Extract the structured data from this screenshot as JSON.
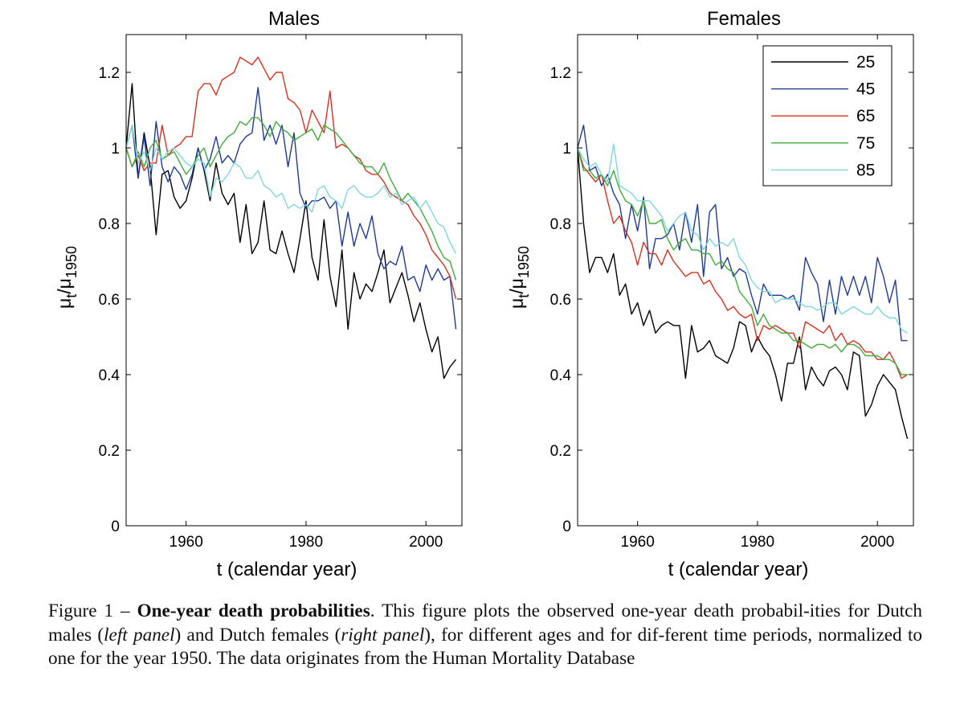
{
  "chart_data": [
    {
      "type": "line",
      "title": "Males",
      "xlabel": "t (calendar year)",
      "ylabel": "μt/μ1950",
      "xlim": [
        1950,
        2006
      ],
      "ylim": [
        0,
        1.3
      ],
      "xticks": [
        1960,
        1980,
        2000
      ],
      "yticks": [
        0,
        0.2,
        0.4,
        0.6,
        0.8,
        1,
        1.2
      ],
      "ytick_labels": [
        "0",
        "0.2",
        "0.4",
        "0.6",
        "0.8",
        "1",
        "1.2"
      ],
      "legend": false,
      "grid": false,
      "series": [
        {
          "name": "25",
          "color": "#000000",
          "x_start": 1950,
          "x_step": 1,
          "values": [
            1.0,
            1.17,
            0.92,
            1.04,
            0.95,
            0.77,
            0.93,
            0.94,
            0.87,
            0.84,
            0.86,
            0.92,
            1.0,
            0.94,
            0.86,
            0.96,
            0.88,
            0.85,
            0.88,
            0.75,
            0.85,
            0.72,
            0.75,
            0.86,
            0.73,
            0.72,
            0.78,
            0.72,
            0.67,
            0.76,
            0.86,
            0.71,
            0.65,
            0.81,
            0.66,
            0.58,
            0.73,
            0.52,
            0.67,
            0.6,
            0.64,
            0.62,
            0.67,
            0.73,
            0.59,
            0.63,
            0.67,
            0.61,
            0.54,
            0.59,
            0.52,
            0.46,
            0.5,
            0.39,
            0.42,
            0.44
          ]
        },
        {
          "name": "45",
          "color": "#1f3a93",
          "x_start": 1950,
          "x_step": 1,
          "values": [
            1.0,
            1.06,
            0.92,
            1.03,
            0.9,
            1.07,
            0.95,
            0.91,
            0.95,
            0.93,
            0.89,
            0.93,
            1.0,
            0.94,
            0.97,
            1.03,
            0.96,
            0.98,
            0.96,
            1.01,
            1.03,
            1.04,
            1.16,
            1.02,
            1.06,
            1.01,
            1.06,
            0.95,
            1.04,
            0.88,
            0.84,
            0.86,
            0.86,
            0.87,
            0.84,
            0.86,
            0.74,
            0.83,
            0.74,
            0.8,
            0.76,
            0.82,
            0.72,
            0.68,
            0.7,
            0.69,
            0.74,
            0.65,
            0.66,
            0.62,
            0.69,
            0.65,
            0.68,
            0.65,
            0.66,
            0.52
          ]
        },
        {
          "name": "65",
          "color": "#d7301f",
          "x_start": 1950,
          "x_step": 1,
          "values": [
            1.0,
            0.95,
            0.98,
            0.94,
            0.96,
            0.96,
            1.06,
            0.98,
            1.0,
            1.01,
            1.03,
            1.03,
            1.15,
            1.17,
            1.17,
            1.14,
            1.18,
            1.19,
            1.2,
            1.24,
            1.23,
            1.22,
            1.24,
            1.21,
            1.18,
            1.2,
            1.2,
            1.13,
            1.12,
            1.1,
            1.04,
            1.1,
            1.07,
            1.04,
            1.15,
            1.0,
            1.01,
            1.0,
            0.98,
            0.97,
            0.94,
            0.93,
            0.93,
            0.91,
            0.88,
            0.87,
            0.86,
            0.85,
            0.82,
            0.8,
            0.77,
            0.73,
            0.71,
            0.69,
            0.66,
            0.6
          ]
        },
        {
          "name": "75",
          "color": "#41ab3c",
          "x_start": 1950,
          "x_step": 1,
          "values": [
            1.0,
            0.95,
            0.99,
            0.95,
            1.0,
            1.02,
            0.97,
            0.98,
            0.99,
            0.96,
            0.93,
            0.95,
            0.98,
            1.0,
            0.95,
            0.98,
            1.01,
            1.03,
            1.04,
            1.07,
            1.06,
            1.08,
            1.08,
            1.06,
            1.03,
            1.07,
            1.05,
            1.04,
            1.02,
            1.03,
            1.04,
            1.05,
            1.02,
            1.06,
            1.05,
            1.04,
            1.02,
            1.0,
            0.98,
            0.96,
            0.95,
            0.95,
            0.93,
            0.96,
            0.92,
            0.89,
            0.86,
            0.88,
            0.86,
            0.84,
            0.81,
            0.78,
            0.74,
            0.71,
            0.7,
            0.65
          ]
        },
        {
          "name": "85",
          "color": "#7fd7dc",
          "x_start": 1950,
          "x_step": 1,
          "values": [
            1.0,
            1.06,
            0.96,
            0.99,
            0.94,
            1.0,
            0.97,
            0.99,
            1.0,
            0.98,
            0.96,
            0.95,
            0.97,
            0.96,
            0.87,
            0.92,
            0.91,
            0.93,
            0.96,
            0.95,
            0.92,
            0.92,
            0.94,
            0.9,
            0.89,
            0.87,
            0.88,
            0.84,
            0.85,
            0.84,
            0.85,
            0.83,
            0.89,
            0.9,
            0.87,
            0.86,
            0.84,
            0.89,
            0.9,
            0.88,
            0.87,
            0.87,
            0.88,
            0.9,
            0.87,
            0.88,
            0.85,
            0.86,
            0.87,
            0.84,
            0.86,
            0.83,
            0.8,
            0.79,
            0.75,
            0.72
          ]
        }
      ]
    },
    {
      "type": "line",
      "title": "Females",
      "xlabel": "t (calendar year)",
      "ylabel": "μt/μ1950",
      "xlim": [
        1950,
        2006
      ],
      "ylim": [
        0,
        1.3
      ],
      "xticks": [
        1960,
        1980,
        2000
      ],
      "yticks": [
        0,
        0.2,
        0.4,
        0.6,
        0.8,
        1,
        1.2
      ],
      "ytick_labels": [
        "0",
        "0.2",
        "0.4",
        "0.6",
        "0.8",
        "1",
        "1.2"
      ],
      "legend": true,
      "legend_position": "top-right",
      "grid": false,
      "series": [
        {
          "name": "25",
          "color": "#000000",
          "x_start": 1950,
          "x_step": 1,
          "values": [
            1.0,
            0.8,
            0.67,
            0.71,
            0.71,
            0.67,
            0.72,
            0.61,
            0.64,
            0.56,
            0.59,
            0.53,
            0.57,
            0.51,
            0.53,
            0.54,
            0.53,
            0.53,
            0.39,
            0.53,
            0.46,
            0.47,
            0.49,
            0.45,
            0.44,
            0.43,
            0.47,
            0.54,
            0.53,
            0.46,
            0.5,
            0.47,
            0.45,
            0.4,
            0.33,
            0.43,
            0.43,
            0.5,
            0.36,
            0.42,
            0.39,
            0.37,
            0.41,
            0.42,
            0.4,
            0.36,
            0.46,
            0.45,
            0.29,
            0.32,
            0.37,
            0.4,
            0.38,
            0.36,
            0.29,
            0.23
          ]
        },
        {
          "name": "45",
          "color": "#1f3a93",
          "x_start": 1950,
          "x_step": 1,
          "values": [
            1.0,
            1.06,
            0.94,
            0.95,
            0.9,
            0.93,
            0.88,
            0.85,
            0.76,
            0.85,
            0.78,
            0.87,
            0.68,
            0.76,
            0.76,
            0.77,
            0.8,
            0.73,
            0.83,
            0.75,
            0.85,
            0.66,
            0.83,
            0.85,
            0.68,
            0.71,
            0.66,
            0.68,
            0.67,
            0.61,
            0.56,
            0.64,
            0.61,
            0.61,
            0.61,
            0.6,
            0.61,
            0.57,
            0.71,
            0.67,
            0.64,
            0.54,
            0.65,
            0.56,
            0.66,
            0.61,
            0.66,
            0.61,
            0.66,
            0.59,
            0.71,
            0.66,
            0.59,
            0.65,
            0.49,
            0.49
          ]
        },
        {
          "name": "65",
          "color": "#d7301f",
          "x_start": 1950,
          "x_step": 1,
          "values": [
            1.0,
            0.95,
            0.93,
            0.91,
            0.93,
            0.86,
            0.8,
            0.82,
            0.78,
            0.75,
            0.69,
            0.75,
            0.72,
            0.72,
            0.69,
            0.73,
            0.7,
            0.68,
            0.66,
            0.67,
            0.67,
            0.64,
            0.65,
            0.62,
            0.6,
            0.57,
            0.58,
            0.56,
            0.55,
            0.56,
            0.49,
            0.53,
            0.52,
            0.53,
            0.52,
            0.51,
            0.51,
            0.47,
            0.54,
            0.53,
            0.52,
            0.51,
            0.53,
            0.49,
            0.51,
            0.48,
            0.49,
            0.48,
            0.46,
            0.46,
            0.44,
            0.44,
            0.46,
            0.43,
            0.39,
            0.4
          ]
        },
        {
          "name": "75",
          "color": "#41ab3c",
          "x_start": 1950,
          "x_step": 1,
          "values": [
            1.0,
            0.94,
            0.94,
            0.92,
            0.93,
            0.9,
            0.94,
            0.89,
            0.86,
            0.85,
            0.82,
            0.86,
            0.8,
            0.8,
            0.81,
            0.76,
            0.73,
            0.75,
            0.76,
            0.73,
            0.73,
            0.72,
            0.72,
            0.69,
            0.7,
            0.68,
            0.67,
            0.62,
            0.6,
            0.58,
            0.53,
            0.56,
            0.53,
            0.52,
            0.51,
            0.51,
            0.49,
            0.49,
            0.48,
            0.47,
            0.48,
            0.48,
            0.47,
            0.48,
            0.46,
            0.48,
            0.48,
            0.47,
            0.45,
            0.45,
            0.45,
            0.44,
            0.44,
            0.43,
            0.4,
            0.4
          ]
        },
        {
          "name": "85",
          "color": "#7fd7dc",
          "x_start": 1950,
          "x_step": 1,
          "values": [
            1.0,
            0.97,
            0.95,
            0.96,
            0.93,
            0.91,
            1.01,
            0.9,
            0.89,
            0.88,
            0.86,
            0.86,
            0.86,
            0.84,
            0.82,
            0.78,
            0.8,
            0.82,
            0.83,
            0.78,
            0.77,
            0.73,
            0.76,
            0.74,
            0.75,
            0.74,
            0.76,
            0.71,
            0.69,
            0.65,
            0.63,
            0.62,
            0.62,
            0.59,
            0.6,
            0.6,
            0.6,
            0.59,
            0.58,
            0.58,
            0.57,
            0.58,
            0.59,
            0.59,
            0.56,
            0.57,
            0.58,
            0.57,
            0.56,
            0.56,
            0.58,
            0.56,
            0.55,
            0.55,
            0.52,
            0.51
          ]
        }
      ]
    }
  ],
  "caption": {
    "prefix": "Figure 1 – ",
    "bold": "One-year death probabilities",
    "t1": ". This figure plots the observed one-year death probabil-ities for Dutch males (",
    "i1": "left panel",
    "t2": ") and Dutch females (",
    "i2": "right panel",
    "t3": "), for different ages and for dif-ferent time periods, normalized to one for the year 1950. The data originates from the Human Mortality Database"
  }
}
